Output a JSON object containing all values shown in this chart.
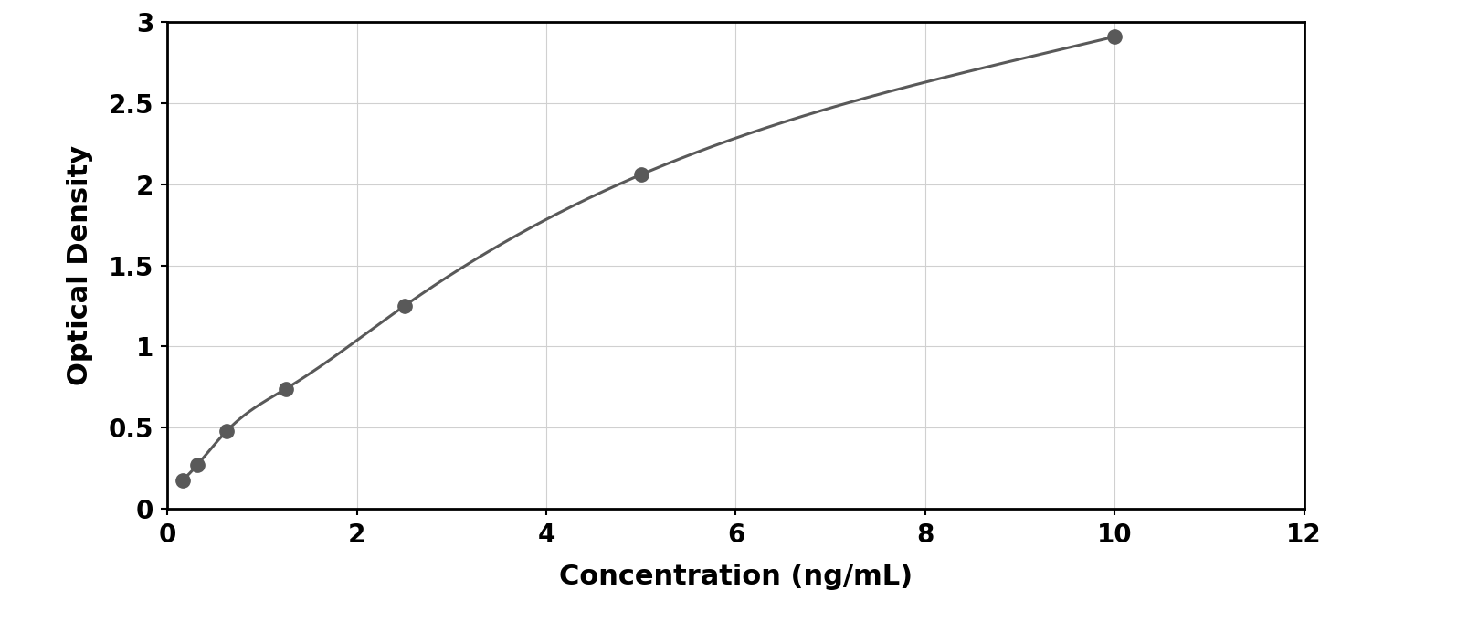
{
  "x_data": [
    0.156,
    0.313,
    0.625,
    1.25,
    2.5,
    5.0,
    10.0
  ],
  "y_data": [
    0.175,
    0.27,
    0.48,
    0.74,
    1.25,
    2.06,
    2.91
  ],
  "xlabel": "Concentration (ng/mL)",
  "ylabel": "Optical Density",
  "xlim": [
    0,
    12
  ],
  "ylim": [
    0,
    3
  ],
  "xticks": [
    0,
    2,
    4,
    6,
    8,
    10,
    12
  ],
  "yticks": [
    0,
    0.5,
    1.0,
    1.5,
    2.0,
    2.5,
    3.0
  ],
  "data_color": "#595959",
  "line_color": "#595959",
  "background_color": "#ffffff",
  "plot_bg_color": "#ffffff",
  "grid_color": "#d0d0d0",
  "marker_size": 11,
  "line_width": 2.2,
  "xlabel_fontsize": 22,
  "ylabel_fontsize": 22,
  "tick_fontsize": 20,
  "border_linewidth": 2.0
}
